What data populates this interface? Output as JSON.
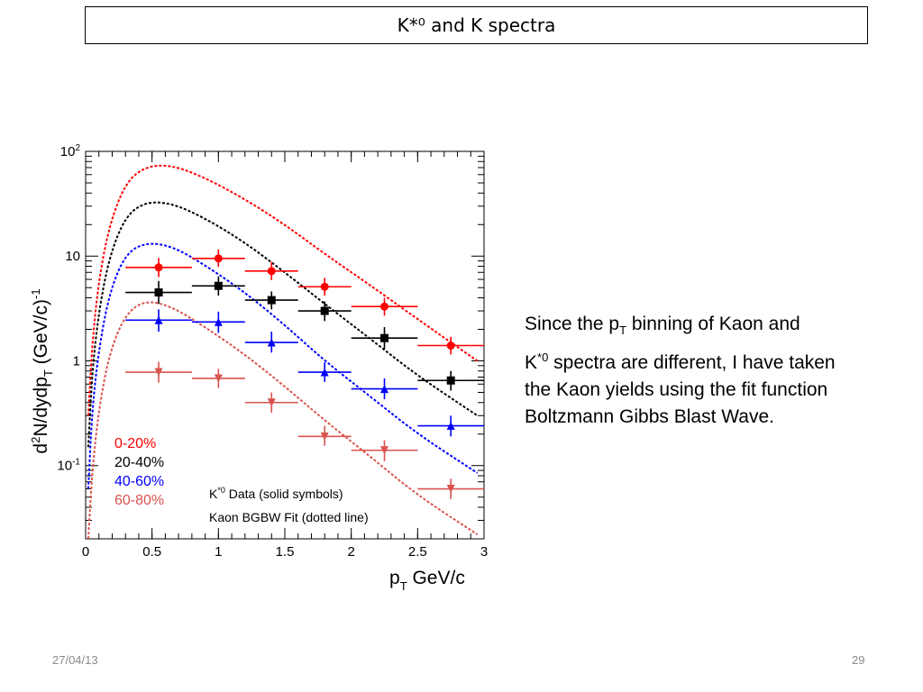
{
  "slide": {
    "title": "K*⁰ and K spectra",
    "note": {
      "line1_pre": "Since the p",
      "line1_sub": "T",
      "line1_post": " binning of Kaon and",
      "line2_pre": "K",
      "line2_sup": "*0",
      "line2_post": " spectra are different, I have taken",
      "line3": "the Kaon yields using the fit function",
      "line4": "Boltzmann Gibbs Blast Wave."
    },
    "footer_date": "27/04/13",
    "footer_page": "29"
  },
  "chart_data": {
    "type": "scatter",
    "yscale": "log",
    "xlim": [
      0,
      3
    ],
    "ylim": [
      0.02,
      100
    ],
    "x_ticks": [
      "0",
      "0.5",
      "1",
      "1.5",
      "2",
      "2.5",
      "3"
    ],
    "ylabel_parts": {
      "a": "d",
      "b": "2",
      "c": "N/dydp",
      "d": "T",
      "e": " (GeV/c)",
      "f": "-1"
    },
    "xlabel_parts": {
      "a": "p",
      "b": "T",
      "c": " GeV/c"
    },
    "annotation_line1": {
      "a": "K",
      "b": "*0",
      "c": " Data (solid symbols)"
    },
    "annotation_line2": "Kaon BGBW Fit (dotted line)",
    "legend_position": "bottom-left",
    "series": [
      {
        "name": "0-20%",
        "color": "#ff0000",
        "marker": "circle",
        "x": [
          0.55,
          1.0,
          1.4,
          1.8,
          2.25,
          2.75
        ],
        "xerr_lo": [
          0.25,
          0.2,
          0.2,
          0.2,
          0.25,
          0.25
        ],
        "xerr_hi": [
          0.25,
          0.2,
          0.2,
          0.2,
          0.25,
          0.25
        ],
        "y": [
          7.8,
          9.5,
          7.2,
          5.1,
          3.3,
          1.4
        ],
        "ylo": [
          6.3,
          7.9,
          5.9,
          4.2,
          2.7,
          1.15
        ],
        "yhi": [
          9.6,
          11.6,
          8.8,
          6.2,
          4.0,
          1.7
        ],
        "fit_y": [
          0.3,
          1.5,
          6.0,
          20.0,
          50.0,
          72.0,
          74.0,
          56.0,
          35.0,
          20.0,
          10.5,
          5.2,
          2.5,
          1.0
        ]
      },
      {
        "name": "20-40%",
        "color": "#000000",
        "marker": "square",
        "x": [
          0.55,
          1.0,
          1.4,
          1.8,
          2.25,
          2.75
        ],
        "xerr_lo": [
          0.25,
          0.2,
          0.2,
          0.2,
          0.25,
          0.25
        ],
        "xerr_hi": [
          0.25,
          0.2,
          0.2,
          0.2,
          0.25,
          0.25
        ],
        "y": [
          4.5,
          5.2,
          3.8,
          3.0,
          1.65,
          0.65
        ],
        "ylo": [
          3.5,
          4.2,
          3.1,
          2.4,
          1.3,
          0.52
        ],
        "yhi": [
          5.8,
          6.4,
          4.6,
          3.7,
          2.1,
          0.8
        ],
        "fit_y": [
          0.15,
          0.8,
          3.0,
          10.0,
          24.0,
          33.0,
          32.0,
          23.0,
          13.5,
          7.0,
          3.5,
          1.6,
          0.72,
          0.3
        ]
      },
      {
        "name": "40-60%",
        "color": "#0000ff",
        "marker": "triangle-up",
        "x": [
          0.55,
          1.0,
          1.4,
          1.8,
          2.25,
          2.75
        ],
        "xerr_lo": [
          0.25,
          0.2,
          0.2,
          0.2,
          0.25,
          0.25
        ],
        "xerr_hi": [
          0.25,
          0.2,
          0.2,
          0.2,
          0.25,
          0.25
        ],
        "y": [
          2.45,
          2.35,
          1.5,
          0.78,
          0.54,
          0.24
        ],
        "ylo": [
          1.9,
          1.85,
          1.2,
          0.63,
          0.43,
          0.19
        ],
        "yhi": [
          3.1,
          2.95,
          1.9,
          0.97,
          0.68,
          0.3
        ],
        "fit_y": [
          0.06,
          0.35,
          1.3,
          4.5,
          10.5,
          13.5,
          12.5,
          8.2,
          4.5,
          2.2,
          1.0,
          0.45,
          0.2,
          0.085
        ]
      },
      {
        "name": "60-80%",
        "color": "#d9534f",
        "marker": "triangle-down",
        "x": [
          0.55,
          1.0,
          1.4,
          1.8,
          2.25,
          2.75
        ],
        "xerr_lo": [
          0.25,
          0.2,
          0.2,
          0.2,
          0.25,
          0.25
        ],
        "xerr_hi": [
          0.25,
          0.2,
          0.2,
          0.2,
          0.25,
          0.25
        ],
        "y": [
          0.78,
          0.68,
          0.4,
          0.19,
          0.14,
          0.06
        ],
        "ylo": [
          0.62,
          0.55,
          0.32,
          0.155,
          0.11,
          0.048
        ],
        "yhi": [
          0.98,
          0.84,
          0.5,
          0.24,
          0.175,
          0.075
        ],
        "fit_y": [
          0.02,
          0.09,
          0.35,
          1.2,
          2.8,
          3.8,
          3.3,
          2.1,
          1.15,
          0.57,
          0.27,
          0.12,
          0.052,
          0.022
        ]
      }
    ],
    "fit_x": [
      0.02,
      0.05,
      0.1,
      0.18,
      0.3,
      0.45,
      0.65,
      0.9,
      1.2,
      1.5,
      1.8,
      2.15,
      2.5,
      2.95
    ]
  }
}
